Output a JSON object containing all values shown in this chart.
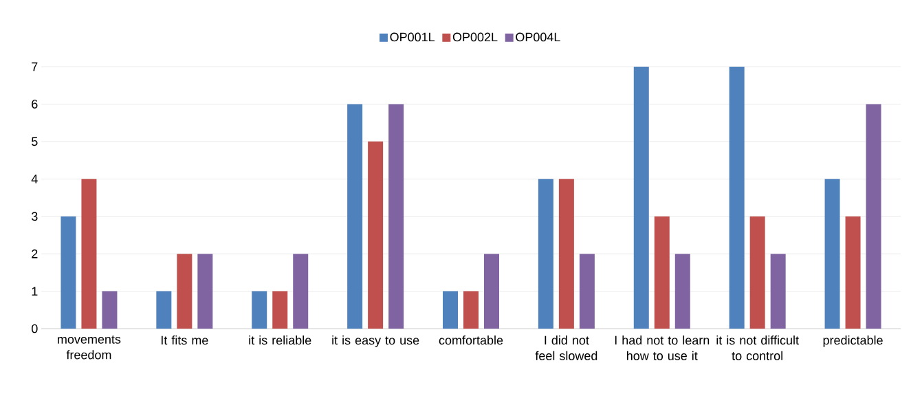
{
  "chart_data": {
    "type": "bar",
    "categories": [
      "movements freedom",
      "It fits me",
      "it is reliable",
      "it is easy to use",
      "comfortable",
      "I did not feel slowed",
      "I had not to learn how to use it",
      "it is not difficult to control",
      "predictable"
    ],
    "series": [
      {
        "name": "OP001L",
        "color": "#4f81bd",
        "values": [
          3,
          1,
          1,
          6,
          1,
          4,
          7,
          7,
          4
        ]
      },
      {
        "name": "OP002L",
        "color": "#c0504d",
        "values": [
          4,
          2,
          1,
          5,
          1,
          4,
          3,
          3,
          3
        ]
      },
      {
        "name": "OP004L",
        "color": "#8064a2",
        "values": [
          1,
          2,
          2,
          6,
          2,
          2,
          2,
          2,
          6
        ]
      }
    ],
    "ylim": [
      0,
      7
    ],
    "yticks": [
      0,
      1,
      2,
      3,
      4,
      5,
      6,
      7
    ],
    "grid": "y",
    "legend": "top"
  }
}
